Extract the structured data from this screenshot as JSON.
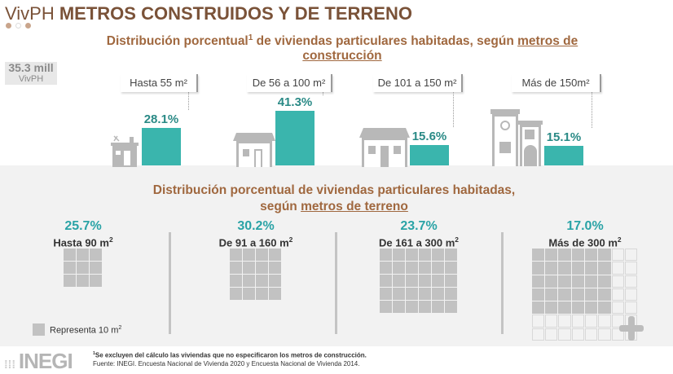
{
  "header": {
    "title_light": "VivPH",
    "title_bold": "METROS CONSTRUIDOS Y DE TERRENO"
  },
  "construction": {
    "subtitle_pre": "Distribución porcentual",
    "footnote_mark": "1",
    "subtitle_mid": " de viviendas particulares habitadas, según ",
    "subtitle_link": "metros de construcción",
    "total_value": "35.3 mill",
    "total_unit": "VivPH"
  },
  "chart_data": {
    "type": "bar",
    "title": "Distribución porcentual de viviendas particulares habitadas, según metros de construcción",
    "categories": [
      "Hasta 55 m²",
      "De 56 a 100 m²",
      "De 101 a 150 m²",
      "Más de 150m²"
    ],
    "values": [
      28.1,
      41.3,
      15.6,
      15.1
    ],
    "value_labels": [
      "28.1%",
      "41.3%",
      "15.6%",
      "15.1%"
    ],
    "ylim": [
      0,
      45
    ],
    "color": "#3ab5ad"
  },
  "terrain": {
    "subtitle_pre": "Distribución porcentual de viviendas particulares habitadas, según ",
    "subtitle_link": "metros de terreno",
    "items": [
      {
        "pct": "25.7%",
        "range": "Hasta 90 m",
        "cols": 3,
        "rows": 3
      },
      {
        "pct": "30.2%",
        "range": "De 91 a 160 m",
        "cols": 4,
        "rows": 4
      },
      {
        "pct": "23.7%",
        "range": "De 161 a 300 m",
        "cols": 6,
        "rows": 5
      },
      {
        "pct": "17.0%",
        "range": "Más de 300 m",
        "cols": 6,
        "rows": 5
      }
    ],
    "legend": "Representa 10 m"
  },
  "footer": {
    "logo": "INEGI",
    "note_mark": "1",
    "note": "Se excluyen del cálculo las viviendas que no especificaron los metros de construcción.",
    "source": "Fuente: INEGI. Encuesta Nacional de Vivienda 2020 y Encuesta Nacional de Vivienda 2014."
  }
}
